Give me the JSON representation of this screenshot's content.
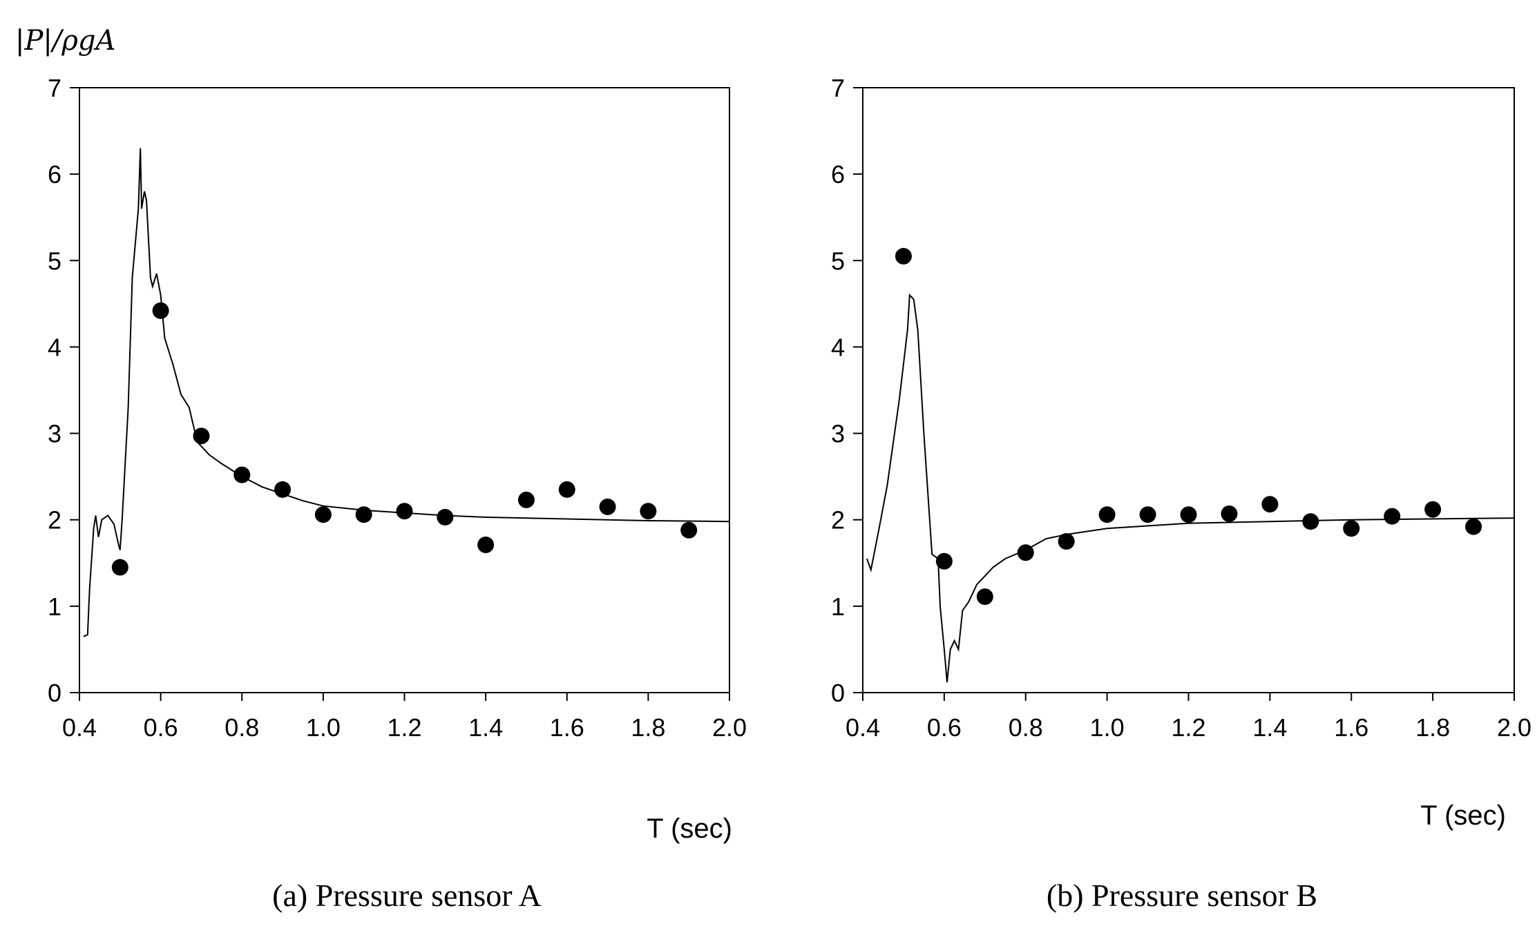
{
  "y_label": "|P|/ρgA",
  "chart_data": [
    {
      "type": "scatter+line",
      "caption": "(a) Pressure sensor A",
      "xlabel": "T (sec)",
      "ylabel": "|P|/ρgA",
      "xlim": [
        0.4,
        2.0
      ],
      "ylim": [
        0,
        7
      ],
      "xticks": [
        "0.4",
        "0.6",
        "0.8",
        "1.0",
        "1.2",
        "1.4",
        "1.6",
        "1.8",
        "2.0"
      ],
      "yticks": [
        "0",
        "1",
        "2",
        "3",
        "4",
        "5",
        "6",
        "7"
      ],
      "grid": false,
      "points": {
        "x": [
          0.5,
          0.6,
          0.7,
          0.8,
          0.9,
          1.0,
          1.1,
          1.2,
          1.3,
          1.4,
          1.5,
          1.6,
          1.7,
          1.8,
          1.9
        ],
        "y": [
          1.45,
          4.42,
          2.97,
          2.52,
          2.35,
          2.06,
          2.06,
          2.1,
          2.03,
          1.71,
          2.23,
          2.35,
          2.15,
          2.1,
          1.88
        ]
      },
      "line": {
        "x": [
          0.41,
          0.42,
          0.425,
          0.435,
          0.44,
          0.447,
          0.455,
          0.47,
          0.485,
          0.497,
          0.5,
          0.505,
          0.52,
          0.53,
          0.545,
          0.55,
          0.553,
          0.56,
          0.565,
          0.575,
          0.58,
          0.59,
          0.6,
          0.61,
          0.63,
          0.65,
          0.67,
          0.69,
          0.72,
          0.75,
          0.8,
          0.85,
          0.9,
          0.95,
          1.0,
          1.1,
          1.2,
          1.3,
          1.4,
          1.6,
          1.8,
          2.0
        ],
        "y": [
          0.65,
          0.67,
          1.2,
          1.9,
          2.05,
          1.8,
          2.0,
          2.05,
          1.95,
          1.7,
          1.65,
          2.0,
          3.3,
          4.8,
          5.6,
          6.3,
          5.6,
          5.8,
          5.7,
          4.8,
          4.7,
          4.85,
          4.6,
          4.1,
          3.8,
          3.45,
          3.3,
          2.9,
          2.75,
          2.65,
          2.5,
          2.38,
          2.3,
          2.22,
          2.16,
          2.11,
          2.08,
          2.05,
          2.03,
          2.01,
          1.99,
          1.98
        ]
      }
    },
    {
      "type": "scatter+line",
      "caption": "(b) Pressure sensor B",
      "xlabel": "T (sec)",
      "xlim": [
        0.4,
        2.0
      ],
      "ylim": [
        0,
        7
      ],
      "xticks": [
        "0.4",
        "0.6",
        "0.8",
        "1.0",
        "1.2",
        "1.4",
        "1.6",
        "1.8",
        "2.0"
      ],
      "yticks": [
        "0",
        "1",
        "2",
        "3",
        "4",
        "5",
        "6",
        "7"
      ],
      "grid": false,
      "points": {
        "x": [
          0.5,
          0.6,
          0.7,
          0.8,
          0.9,
          1.0,
          1.1,
          1.2,
          1.3,
          1.4,
          1.5,
          1.6,
          1.7,
          1.8,
          1.9
        ],
        "y": [
          5.05,
          1.52,
          1.11,
          1.62,
          1.75,
          2.06,
          2.06,
          2.06,
          2.07,
          2.18,
          1.98,
          1.9,
          2.04,
          2.12,
          1.92
        ]
      },
      "line": {
        "x": [
          0.41,
          0.42,
          0.44,
          0.46,
          0.49,
          0.51,
          0.515,
          0.525,
          0.535,
          0.55,
          0.57,
          0.585,
          0.59,
          0.6,
          0.607,
          0.615,
          0.625,
          0.635,
          0.645,
          0.66,
          0.68,
          0.7,
          0.72,
          0.75,
          0.8,
          0.85,
          0.9,
          1.0,
          1.1,
          1.2,
          1.4,
          1.6,
          2.0
        ],
        "y": [
          1.55,
          1.42,
          1.9,
          2.4,
          3.4,
          4.2,
          4.6,
          4.55,
          4.2,
          3.0,
          1.6,
          1.55,
          1.0,
          0.5,
          0.12,
          0.5,
          0.6,
          0.5,
          0.95,
          1.05,
          1.25,
          1.35,
          1.45,
          1.55,
          1.65,
          1.78,
          1.83,
          1.9,
          1.93,
          1.96,
          1.98,
          2.0,
          2.02
        ]
      }
    }
  ]
}
